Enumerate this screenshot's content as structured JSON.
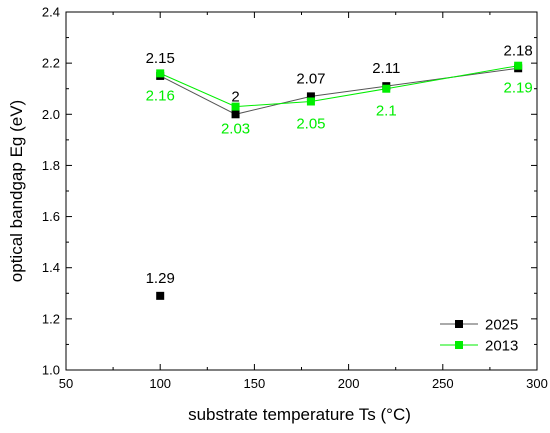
{
  "chart_data": {
    "type": "line",
    "xlabel": "substrate temperature Ts (°C)",
    "ylabel": "optical bandgap Eg (eV)",
    "xlim": [
      50,
      300
    ],
    "ylim": [
      1.0,
      2.4
    ],
    "xticks": [
      50,
      100,
      150,
      200,
      250,
      300
    ],
    "yticks": [
      1.0,
      1.2,
      1.4,
      1.6,
      1.8,
      2.0,
      2.2,
      2.4
    ],
    "xtick_labels": [
      "50",
      "100",
      "150",
      "200",
      "250",
      "300"
    ],
    "ytick_labels": [
      "1.0",
      "1.2",
      "1.4",
      "1.6",
      "1.8",
      "2.0",
      "2.2",
      "2.4"
    ],
    "grid": false,
    "legend_position": "bottom-right",
    "series": [
      {
        "name": "2025",
        "color": "#000000",
        "points": [
          {
            "x": 100,
            "y": 1.29,
            "label": "1.29",
            "connected": false
          },
          {
            "x": 100,
            "y": 2.15,
            "label": "2.15",
            "connected": true
          },
          {
            "x": 140,
            "y": 2.0,
            "label": "2",
            "connected": true
          },
          {
            "x": 180,
            "y": 2.07,
            "label": "2.07",
            "connected": true
          },
          {
            "x": 220,
            "y": 2.11,
            "label": "2.11",
            "connected": true
          },
          {
            "x": 290,
            "y": 2.18,
            "label": "2.18",
            "connected": true
          }
        ]
      },
      {
        "name": "2013",
        "color": "#00ee00",
        "points": [
          {
            "x": 100,
            "y": 2.16,
            "label": "2.16",
            "connected": true
          },
          {
            "x": 140,
            "y": 2.03,
            "label": "2.03",
            "connected": true
          },
          {
            "x": 180,
            "y": 2.05,
            "label": "2.05",
            "connected": true
          },
          {
            "x": 220,
            "y": 2.1,
            "label": "2.1",
            "connected": true
          },
          {
            "x": 290,
            "y": 2.19,
            "label": "2.19",
            "connected": true
          }
        ]
      }
    ]
  }
}
